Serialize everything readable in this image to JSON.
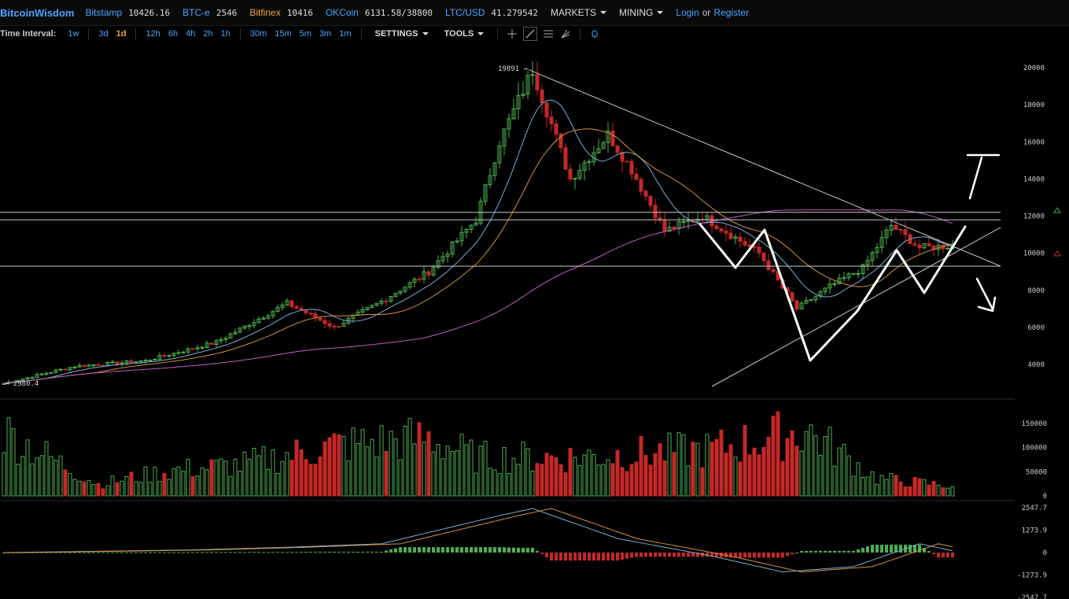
{
  "header": {
    "brand": "BitcoinWisdom",
    "exchanges": [
      {
        "name": "Bitstamp",
        "value": "10426.16",
        "color": "#4aa3ff"
      },
      {
        "name": "BTC-e",
        "value": "2546",
        "color": "#4aa3ff"
      },
      {
        "name": "Bitfinex",
        "value": "10416",
        "color": "#f0a040"
      },
      {
        "name": "OKCoin",
        "value": "6131.58/38800",
        "color": "#4aa3ff"
      },
      {
        "name": "LTC/USD",
        "value": "41.279542",
        "color": "#4aa3ff"
      }
    ],
    "markets_label": "MARKETS",
    "mining_label": "MINING",
    "login_label": "Login",
    "or_label": "or",
    "register_label": "Register"
  },
  "toolbar": {
    "time_interval_label": "Time Interval:",
    "intervals": [
      "1w",
      "3d",
      "1d",
      "12h",
      "6h",
      "4h",
      "2h",
      "1h",
      "30m",
      "15m",
      "5m",
      "3m",
      "1m"
    ],
    "active_interval": "1d",
    "settings_label": "SETTINGS",
    "tools_label": "TOOLS",
    "tool_icons": [
      "crosshair-icon",
      "line-tool-icon",
      "horizontal-lines-icon",
      "fan-tool-icon",
      "alert-bell-icon"
    ]
  },
  "chart_data": {
    "type": "candlestick",
    "price_axis_ticks": [
      "20000",
      "18000",
      "16000",
      "14000",
      "12000",
      "10000",
      "8000",
      "6000",
      "4000"
    ],
    "volume_axis_ticks": [
      "150000",
      "100000",
      "50000",
      "0"
    ],
    "macd_axis_ticks": [
      "2547.7",
      "1273.9",
      "0",
      "-1273.9",
      "-2547.7"
    ],
    "high_label": "19891",
    "low_label": "2980.4",
    "price_range": [
      2500,
      20500
    ],
    "colors": {
      "up": "#4caf50",
      "down": "#c62828",
      "ma_short": "#7aaed6",
      "ma_long": "#d9913c",
      "ma_200": "#c060c8",
      "annotation": "#ffffff"
    },
    "price_keypoints": [
      [
        0,
        2980
      ],
      [
        15,
        3900
      ],
      [
        30,
        4200
      ],
      [
        45,
        5200
      ],
      [
        60,
        7300
      ],
      [
        70,
        6000
      ],
      [
        80,
        7400
      ],
      [
        90,
        9000
      ],
      [
        100,
        11800
      ],
      [
        105,
        16000
      ],
      [
        112,
        19891
      ],
      [
        120,
        14000
      ],
      [
        128,
        16400
      ],
      [
        133,
        14500
      ],
      [
        140,
        11200
      ],
      [
        148,
        12000
      ],
      [
        160,
        10000
      ],
      [
        168,
        7000
      ],
      [
        175,
        8200
      ],
      [
        182,
        9200
      ],
      [
        188,
        11500
      ],
      [
        194,
        10300
      ],
      [
        201,
        10400
      ]
    ],
    "volume_keypoints": [
      [
        0,
        165000
      ],
      [
        20,
        30000
      ],
      [
        35,
        65000
      ],
      [
        50,
        80000
      ],
      [
        70,
        130000
      ],
      [
        90,
        150000
      ],
      [
        100,
        100000
      ],
      [
        120,
        100000
      ],
      [
        150,
        120000
      ],
      [
        170,
        170000
      ],
      [
        185,
        45000
      ],
      [
        201,
        25000
      ]
    ],
    "macd_keypoints": [
      [
        0,
        0
      ],
      [
        40,
        150
      ],
      [
        60,
        300
      ],
      [
        80,
        500
      ],
      [
        105,
        2100
      ],
      [
        112,
        2500
      ],
      [
        130,
        800
      ],
      [
        150,
        -200
      ],
      [
        165,
        -1100
      ],
      [
        180,
        -800
      ],
      [
        194,
        500
      ],
      [
        201,
        100
      ]
    ]
  }
}
